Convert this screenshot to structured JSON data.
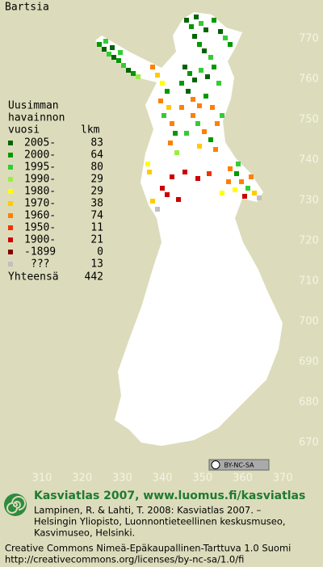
{
  "title": "Bartsia",
  "legend": {
    "heading": [
      "Uusimman",
      "havainnon"
    ],
    "col_year": "vuosi",
    "col_count": "lkm",
    "rows": [
      {
        "label": "2005-",
        "count": "83",
        "color": "#006400"
      },
      {
        "label": "2000-",
        "count": "64",
        "color": "#009900"
      },
      {
        "label": "1995-",
        "count": "80",
        "color": "#33cc33"
      },
      {
        "label": "1990-",
        "count": "29",
        "color": "#99ee44"
      },
      {
        "label": "1980-",
        "count": "29",
        "color": "#ffff00"
      },
      {
        "label": "1970-",
        "count": "38",
        "color": "#ffcc00"
      },
      {
        "label": "1960-",
        "count": "74",
        "color": "#ff8000"
      },
      {
        "label": "1950-",
        "count": "11",
        "color": "#ee3300"
      },
      {
        "label": "1900-",
        "count": "21",
        "color": "#cc0000"
      },
      {
        "label": "-1899",
        "count": "0",
        "color": "#800000"
      },
      {
        "label": "???",
        "count": "13",
        "color": "#c0c0c0"
      }
    ],
    "total_label": "Yhteensä",
    "total": "442"
  },
  "grid_y": [
    "770",
    "760",
    "750",
    "740",
    "730",
    "720",
    "710",
    "700",
    "690",
    "680",
    "670"
  ],
  "grid_x": [
    "310",
    "320",
    "330",
    "340",
    "350",
    "360",
    "370"
  ],
  "license_badge": "BY-NC-SA",
  "footer": {
    "heading": "Kasviatlas 2007, www.luomus.fi/kasviatlas",
    "citation": [
      "Lampinen, R. & Lahti, T. 2008: Kasviatlas 2007. –",
      "Helsingin Yliopisto, Luonnontieteellinen keskusmuseo,",
      "Kasvimuseo, Helsinki."
    ],
    "license": [
      "Creative Commons Nimeä-Epäkaupallinen-Tarttuva 1.0 Suomi",
      "http://creativecommons.org/licenses/by-nc-sa/1.0/fi"
    ]
  }
}
